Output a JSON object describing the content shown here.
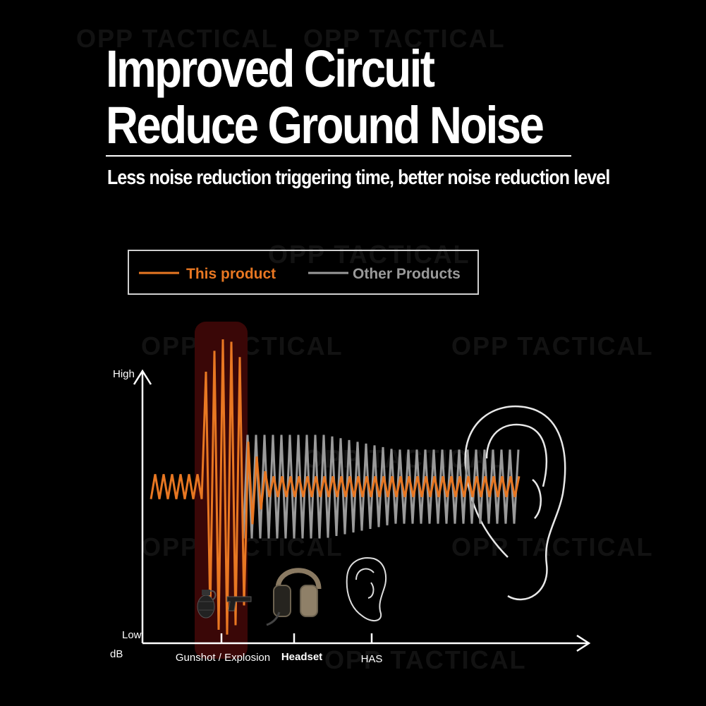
{
  "header": {
    "title_line1": "Improved Circuit",
    "title_line2": "Reduce Ground Noise",
    "subtitle": "Less noise reduction triggering time, better noise reduction level"
  },
  "watermark": "OPP TACTICAL",
  "colors": {
    "this_product": "#e87722",
    "other_products": "#9a9a9a",
    "highlight": "#3a0707"
  },
  "chart_data": {
    "type": "line",
    "legend": [
      "This product",
      "Other Products"
    ],
    "legend_position": "top-left",
    "ylabel_top": "High",
    "ylabel_bottom": "Low",
    "yunit": "dB",
    "categories": [
      "Gunshot / Explosion",
      "Headset",
      "HAS"
    ],
    "icons": [
      "grenade-icon",
      "pistol-icon",
      "headset-icon",
      "ear-icon"
    ],
    "series": [
      {
        "name": "This product",
        "peak_amplitude": 1.0,
        "settled_amplitude": 0.07
      },
      {
        "name": "Other Products",
        "peak_amplitude": 0.35,
        "settled_amplitude": 0.25
      }
    ]
  }
}
